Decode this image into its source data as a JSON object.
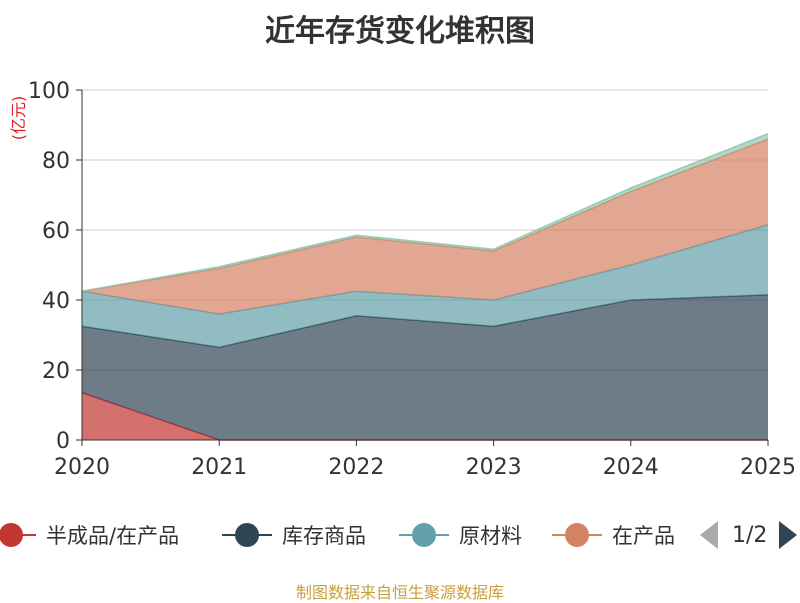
{
  "chart_data": {
    "type": "area",
    "stacked": true,
    "title": "近年存货变化堆积图",
    "y_unit": "(亿元)",
    "ylim": [
      0,
      100
    ],
    "y_ticks": [
      0,
      20,
      40,
      60,
      80,
      100
    ],
    "grid": "horizontal",
    "x": [
      "2020",
      "2021",
      "2022",
      "2023",
      "2024",
      "2025"
    ],
    "series": [
      {
        "name": "半成品/在产品",
        "color": "#c23531",
        "values": [
          13.5,
          0,
          0,
          0,
          0,
          0
        ]
      },
      {
        "name": "库存商品",
        "color": "#2f4554",
        "values": [
          19,
          26.5,
          35.5,
          32.5,
          40,
          41.5
        ]
      },
      {
        "name": "原材料",
        "color": "#61a0a8",
        "values": [
          10,
          9.5,
          7,
          7.5,
          10,
          20
        ]
      },
      {
        "name": "在产品",
        "color": "#d48265",
        "values": [
          0,
          13,
          15.5,
          14,
          21,
          24.5
        ]
      },
      {
        "color": "#91c7ae",
        "values": [
          0,
          0.5,
          0.5,
          0.5,
          1,
          1.5
        ]
      }
    ]
  },
  "legend": {
    "items": [
      {
        "label": "半成品/在产品",
        "color": "#c23531"
      },
      {
        "label": "库存商品",
        "color": "#2f4554"
      },
      {
        "label": "原材料",
        "color": "#61a0a8"
      },
      {
        "label": "在产品",
        "color": "#d48265"
      }
    ],
    "page_text": "1/2"
  },
  "footer": {
    "source": "制图数据来自恒生聚源数据库"
  }
}
